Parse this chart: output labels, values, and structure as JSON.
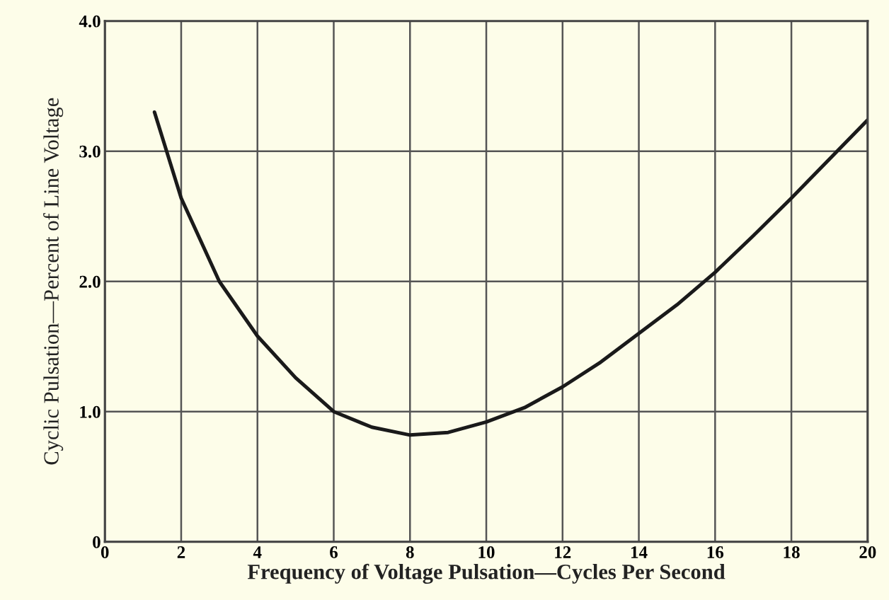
{
  "chart_data": {
    "type": "line",
    "xlabel": "Frequency of Voltage Pulsation—Cycles Per Second",
    "ylabel": "Cyclic Pulsation—Percent of Line Voltage",
    "x": [
      1.3,
      2,
      3,
      4,
      5,
      6,
      7,
      8,
      9,
      10,
      11,
      12,
      13,
      14,
      15,
      16,
      17,
      18,
      19,
      20
    ],
    "series": [
      {
        "color": "#1a1a1a",
        "values": [
          3.3,
          2.64,
          2.0,
          1.58,
          1.26,
          1.0,
          0.88,
          0.82,
          0.84,
          0.92,
          1.03,
          1.19,
          1.38,
          1.6,
          1.82,
          2.07,
          2.35,
          2.64,
          2.94,
          3.24
        ]
      }
    ],
    "xlim": [
      0,
      20
    ],
    "ylim": [
      0,
      4.0
    ],
    "xticks": [
      0,
      2,
      4,
      6,
      8,
      10,
      12,
      14,
      16,
      18,
      20
    ],
    "yticks": [
      0,
      {
        "value": 1,
        "label": "1.0"
      },
      {
        "value": 2,
        "label": "2.0"
      },
      {
        "value": 3,
        "label": "3.0"
      },
      {
        "value": 4,
        "label": "4.0"
      }
    ],
    "grid": true,
    "marker": "none",
    "line_style": "solid"
  }
}
